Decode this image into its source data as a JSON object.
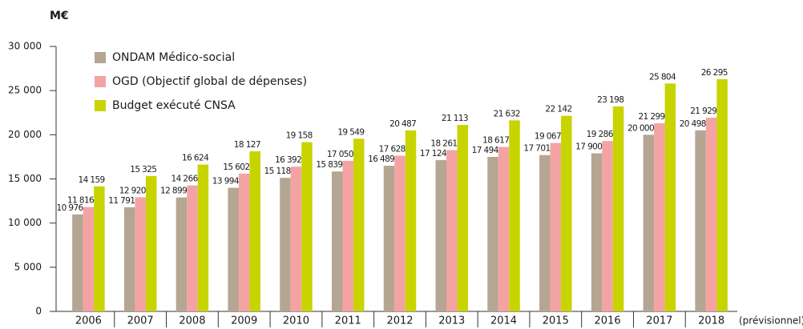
{
  "chart_data": {
    "type": "bar",
    "y_label": "M€",
    "annotation": "(prévisionnel)",
    "categories": [
      "2006",
      "2007",
      "2008",
      "2009",
      "2010",
      "2011",
      "2012",
      "2013",
      "2014",
      "2015",
      "2016",
      "2017",
      "2018"
    ],
    "series": [
      {
        "name": "ONDAM Médico-social",
        "color": "#b5a593",
        "values": [
          10976,
          11791,
          12899,
          13994,
          15118,
          15839,
          16489,
          17124,
          17494,
          17701,
          17900,
          20000,
          20498
        ],
        "value_labels": [
          "10 976",
          "11 791",
          "12 899",
          "13 994",
          "15 118",
          "15 839",
          "16 489",
          "17 124",
          "17 494",
          "17 701",
          "17 900",
          "20 000",
          "20 498"
        ]
      },
      {
        "name": "OGD (Objectif global de dépenses)",
        "color": "#f4a3a3",
        "values": [
          11816,
          12920,
          14266,
          15602,
          16392,
          17050,
          17628,
          18261,
          18617,
          19067,
          19286,
          21299,
          21929
        ],
        "value_labels": [
          "11 816",
          "12 920",
          "14 266",
          "15 602",
          "16 392",
          "17 050",
          "17 628",
          "18 261",
          "18 617",
          "19 067",
          "19 286",
          "21 299",
          "21 929"
        ]
      },
      {
        "name": "Budget exécuté CNSA",
        "color": "#c8d400",
        "values": [
          14159,
          15325,
          16624,
          18127,
          19158,
          19549,
          20487,
          21113,
          21632,
          22142,
          23198,
          25804,
          26295
        ],
        "value_labels": [
          "14 159",
          "15 325",
          "16 624",
          "18 127",
          "19 158",
          "19 549",
          "20 487",
          "21 113",
          "21 632",
          "22 142",
          "23 198",
          "25 804",
          "26 295"
        ]
      }
    ],
    "ylim": [
      0,
      30000
    ],
    "yticks": [
      0,
      {
        "value": 5000,
        "label": "5 000"
      },
      {
        "value": 10000,
        "label": "10 000"
      },
      {
        "value": 15000,
        "label": "15 000"
      },
      {
        "value": 20000,
        "label": "20 000"
      },
      {
        "value": 25000,
        "label": "25 000"
      },
      {
        "value": 30000,
        "label": "30 000"
      }
    ],
    "legend": "upper left"
  }
}
